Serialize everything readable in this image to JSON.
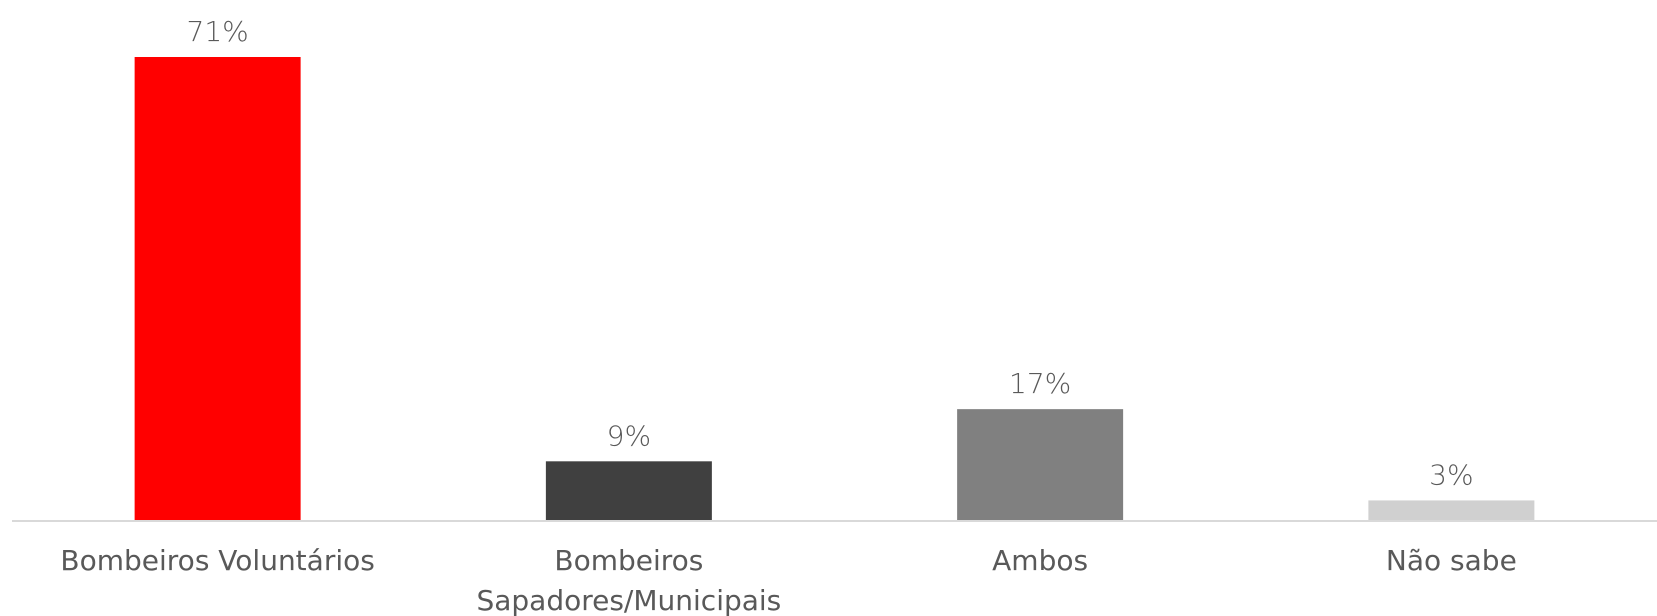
{
  "chart_data": {
    "type": "bar",
    "title": "",
    "xlabel": "",
    "ylabel": "",
    "categories": [
      [
        "Bombeiros Voluntários"
      ],
      [
        "Bombeiros",
        "Sapadores/Municipais"
      ],
      [
        "Ambos"
      ],
      [
        "Não sabe"
      ]
    ],
    "values": [
      71,
      9,
      17,
      3
    ],
    "data_labels": [
      "71%",
      "9%",
      "17%",
      "3%"
    ],
    "colors": [
      "#FF0000",
      "#404040",
      "#808080",
      "#D0D0D0"
    ],
    "ylim": [
      0,
      71
    ],
    "grid": false,
    "legend": "none"
  }
}
